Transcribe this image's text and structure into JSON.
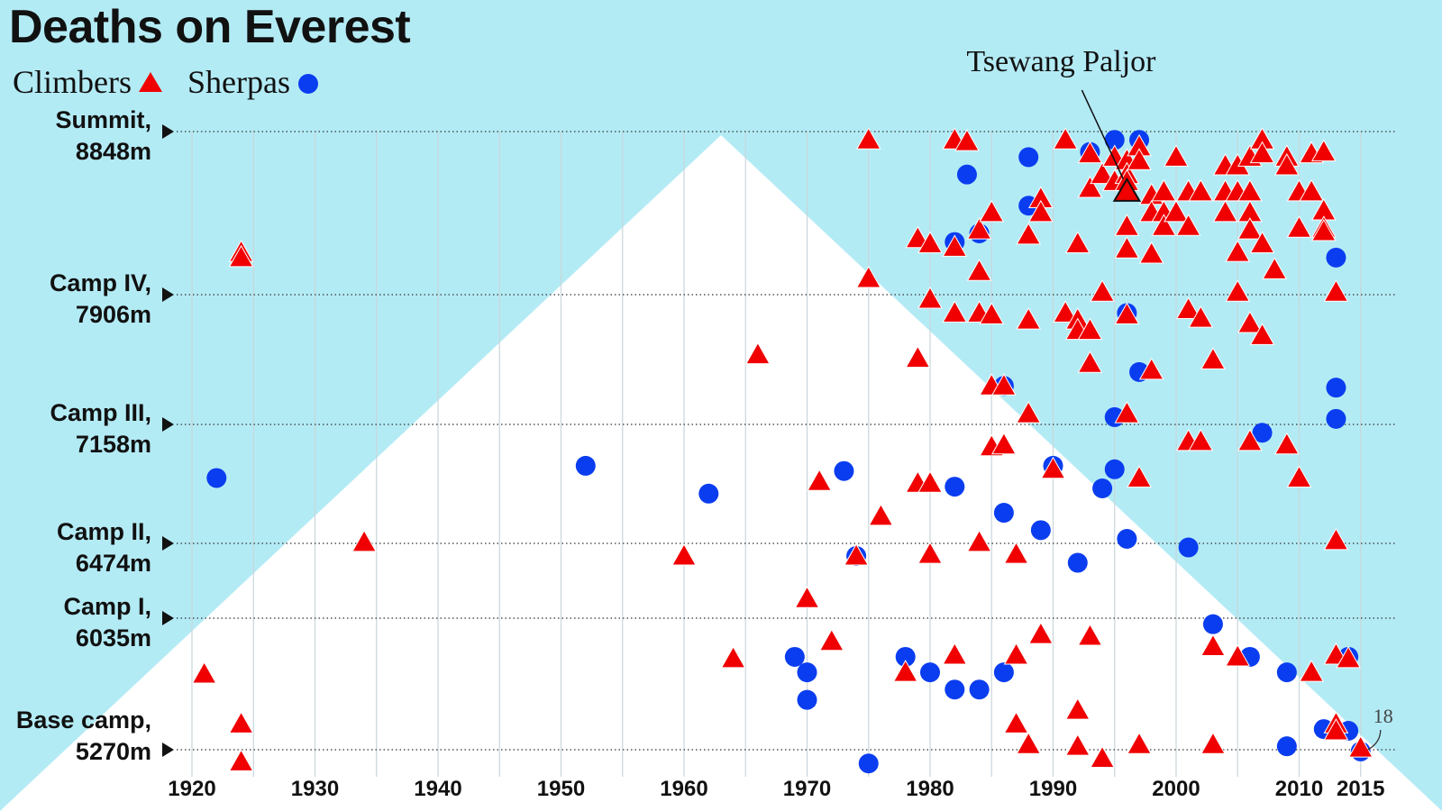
{
  "chart_data": {
    "type": "scatter",
    "title": "Deaths on Everest",
    "legend_position": "top-left",
    "colors": {
      "background": "#b3ebf5",
      "mountain": "#ffffff",
      "climbers": "#f00000",
      "sherpas": "#0b3df0"
    },
    "xlim": [
      1918,
      2018
    ],
    "x_ticks": [
      "1920",
      "1930",
      "1940",
      "1950",
      "1960",
      "1970",
      "1980",
      "1990",
      "2000",
      "2010",
      "2015"
    ],
    "x_tick_values": [
      1920,
      1930,
      1940,
      1950,
      1960,
      1970,
      1980,
      1990,
      2000,
      2010,
      2015
    ],
    "ylim": [
      5200,
      8848
    ],
    "camps": [
      {
        "name": "Summit,",
        "altitude_label": "8848m",
        "altitude": 8848
      },
      {
        "name": "Camp IV,",
        "altitude_label": "7906m",
        "altitude": 7906
      },
      {
        "name": "Camp III,",
        "altitude_label": "7158m",
        "altitude": 7158
      },
      {
        "name": "Camp II,",
        "altitude_label": "6474m",
        "altitude": 6474
      },
      {
        "name": "Camp I,",
        "altitude_label": "6035m",
        "altitude": 6035
      },
      {
        "name": "Base camp,",
        "altitude_label": "5270m",
        "altitude": 5270
      }
    ],
    "annotation": {
      "label": "Tsewang Paljor",
      "year": 1996,
      "altitude": 8500
    },
    "note_label": "18",
    "series": [
      {
        "name": "Climbers",
        "marker": "triangle",
        "points": [
          [
            1924,
            8150
          ],
          [
            1924,
            8120
          ],
          [
            1921,
            5710
          ],
          [
            1924,
            5420
          ],
          [
            1924,
            5200
          ],
          [
            1934,
            6480
          ],
          [
            1960,
            6400
          ],
          [
            1964,
            5800
          ],
          [
            1966,
            7560
          ],
          [
            1970,
            6150
          ],
          [
            1971,
            6830
          ],
          [
            1972,
            5900
          ],
          [
            1974,
            6400
          ],
          [
            1975,
            8800
          ],
          [
            1975,
            8000
          ],
          [
            1976,
            6630
          ],
          [
            1978,
            5720
          ],
          [
            1979,
            8230
          ],
          [
            1979,
            7540
          ],
          [
            1979,
            6820
          ],
          [
            1980,
            8200
          ],
          [
            1980,
            7880
          ],
          [
            1980,
            6820
          ],
          [
            1980,
            6410
          ],
          [
            1982,
            8800
          ],
          [
            1982,
            8180
          ],
          [
            1982,
            7800
          ],
          [
            1982,
            5820
          ],
          [
            1983,
            8790
          ],
          [
            1984,
            8280
          ],
          [
            1984,
            8040
          ],
          [
            1984,
            7800
          ],
          [
            1984,
            6480
          ],
          [
            1985,
            8380
          ],
          [
            1985,
            7380
          ],
          [
            1985,
            7030
          ],
          [
            1985,
            7790
          ],
          [
            1986,
            7380
          ],
          [
            1986,
            7040
          ],
          [
            1987,
            6410
          ],
          [
            1987,
            5820
          ],
          [
            1987,
            5420
          ],
          [
            1988,
            8250
          ],
          [
            1988,
            7760
          ],
          [
            1988,
            7220
          ],
          [
            1988,
            5300
          ],
          [
            1989,
            8460
          ],
          [
            1989,
            8380
          ],
          [
            1989,
            5940
          ],
          [
            1990,
            6900
          ],
          [
            1991,
            8800
          ],
          [
            1991,
            7800
          ],
          [
            1992,
            8200
          ],
          [
            1992,
            7760
          ],
          [
            1992,
            7700
          ],
          [
            1992,
            5500
          ],
          [
            1992,
            5290
          ],
          [
            1993,
            8720
          ],
          [
            1993,
            8520
          ],
          [
            1993,
            7700
          ],
          [
            1993,
            7510
          ],
          [
            1993,
            5930
          ],
          [
            1994,
            8600
          ],
          [
            1994,
            7920
          ],
          [
            1994,
            5220
          ],
          [
            1995,
            8700
          ],
          [
            1995,
            8560
          ],
          [
            1996,
            8680
          ],
          [
            1996,
            8600
          ],
          [
            1996,
            8560
          ],
          [
            1996,
            8300
          ],
          [
            1996,
            8170
          ],
          [
            1996,
            7790
          ],
          [
            1996,
            7220
          ],
          [
            1997,
            8760
          ],
          [
            1997,
            8680
          ],
          [
            1997,
            6850
          ],
          [
            1997,
            5300
          ],
          [
            1998,
            8480
          ],
          [
            1998,
            8380
          ],
          [
            1998,
            8140
          ],
          [
            1998,
            7470
          ],
          [
            1999,
            8500
          ],
          [
            1999,
            8380
          ],
          [
            1999,
            8300
          ],
          [
            2000,
            8700
          ],
          [
            2000,
            8380
          ],
          [
            2001,
            8500
          ],
          [
            2001,
            8300
          ],
          [
            2001,
            7060
          ],
          [
            2001,
            7820
          ],
          [
            2002,
            8500
          ],
          [
            2002,
            7770
          ],
          [
            2002,
            7060
          ],
          [
            2003,
            7530
          ],
          [
            2003,
            5870
          ],
          [
            2003,
            5300
          ],
          [
            2004,
            8650
          ],
          [
            2004,
            8500
          ],
          [
            2004,
            8380
          ],
          [
            2005,
            8650
          ],
          [
            2005,
            8500
          ],
          [
            2005,
            8150
          ],
          [
            2005,
            7920
          ],
          [
            2005,
            5810
          ],
          [
            2006,
            8700
          ],
          [
            2006,
            8500
          ],
          [
            2006,
            8380
          ],
          [
            2006,
            8280
          ],
          [
            2006,
            7740
          ],
          [
            2006,
            7060
          ],
          [
            2007,
            8800
          ],
          [
            2007,
            8720
          ],
          [
            2007,
            8200
          ],
          [
            2007,
            7670
          ],
          [
            2008,
            8050
          ],
          [
            2009,
            8700
          ],
          [
            2009,
            8650
          ],
          [
            2009,
            7040
          ],
          [
            2010,
            8500
          ],
          [
            2010,
            8290
          ],
          [
            2010,
            6850
          ],
          [
            2011,
            8720
          ],
          [
            2011,
            8500
          ],
          [
            2011,
            5720
          ],
          [
            2012,
            8730
          ],
          [
            2012,
            8390
          ],
          [
            2012,
            8290
          ],
          [
            2012,
            8270
          ],
          [
            2013,
            7920
          ],
          [
            2013,
            6490
          ],
          [
            2013,
            5820
          ],
          [
            2013,
            5420
          ],
          [
            2013,
            5380
          ],
          [
            2014,
            5800
          ],
          [
            2015,
            5280
          ]
        ]
      },
      {
        "name": "Sherpas",
        "marker": "circle",
        "points": [
          [
            1922,
            6850
          ],
          [
            1952,
            6920
          ],
          [
            1962,
            6760
          ],
          [
            1969,
            5810
          ],
          [
            1970,
            5720
          ],
          [
            1970,
            5560
          ],
          [
            1973,
            6890
          ],
          [
            1974,
            6400
          ],
          [
            1975,
            5190
          ],
          [
            1978,
            5810
          ],
          [
            1980,
            5720
          ],
          [
            1982,
            8210
          ],
          [
            1982,
            6800
          ],
          [
            1982,
            5620
          ],
          [
            1983,
            8600
          ],
          [
            1984,
            8260
          ],
          [
            1984,
            5620
          ],
          [
            1986,
            7380
          ],
          [
            1986,
            6650
          ],
          [
            1986,
            5720
          ],
          [
            1988,
            8700
          ],
          [
            1988,
            8420
          ],
          [
            1989,
            6550
          ],
          [
            1990,
            6920
          ],
          [
            1992,
            6360
          ],
          [
            1993,
            8730
          ],
          [
            1994,
            6790
          ],
          [
            1995,
            8800
          ],
          [
            1995,
            7200
          ],
          [
            1995,
            6900
          ],
          [
            1996,
            7800
          ],
          [
            1996,
            6500
          ],
          [
            1997,
            8800
          ],
          [
            1997,
            7460
          ],
          [
            2001,
            6450
          ],
          [
            2003,
            6000
          ],
          [
            2006,
            5810
          ],
          [
            2007,
            7110
          ],
          [
            2009,
            5720
          ],
          [
            2009,
            5290
          ],
          [
            2012,
            5390
          ],
          [
            2013,
            8120
          ],
          [
            2013,
            7370
          ],
          [
            2013,
            7190
          ],
          [
            2014,
            5810
          ],
          [
            2014,
            5380
          ],
          [
            2015,
            5260
          ]
        ]
      }
    ]
  }
}
